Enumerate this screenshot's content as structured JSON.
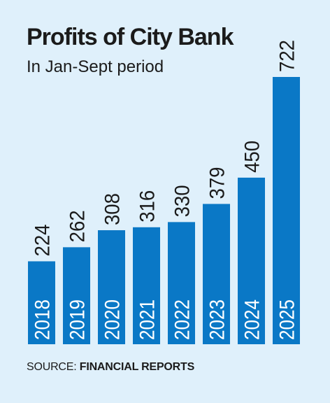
{
  "chart_data": {
    "type": "bar",
    "title": "Profits of City Bank",
    "subtitle": "In Jan-Sept period",
    "categories": [
      "2018",
      "2019",
      "2020",
      "2021",
      "2022",
      "2023",
      "2024",
      "2025"
    ],
    "values": [
      224,
      262,
      308,
      316,
      330,
      379,
      450,
      722
    ],
    "data_labels": [
      "224",
      "262",
      "308",
      "316",
      "330",
      "379",
      "450",
      "722"
    ],
    "xlabel": "",
    "ylabel": "",
    "ylim": [
      0,
      722
    ],
    "grid": false,
    "legend": "none",
    "bar_color": "#0a78c6",
    "label_color": "#1b1b1b",
    "category_label_color": "#ffffff"
  },
  "source": {
    "prefix": "SOURCE:",
    "name": "FINANCIAL REPORTS"
  },
  "colors": {
    "background": "#dff0fb",
    "text": "#1b1b1b"
  }
}
